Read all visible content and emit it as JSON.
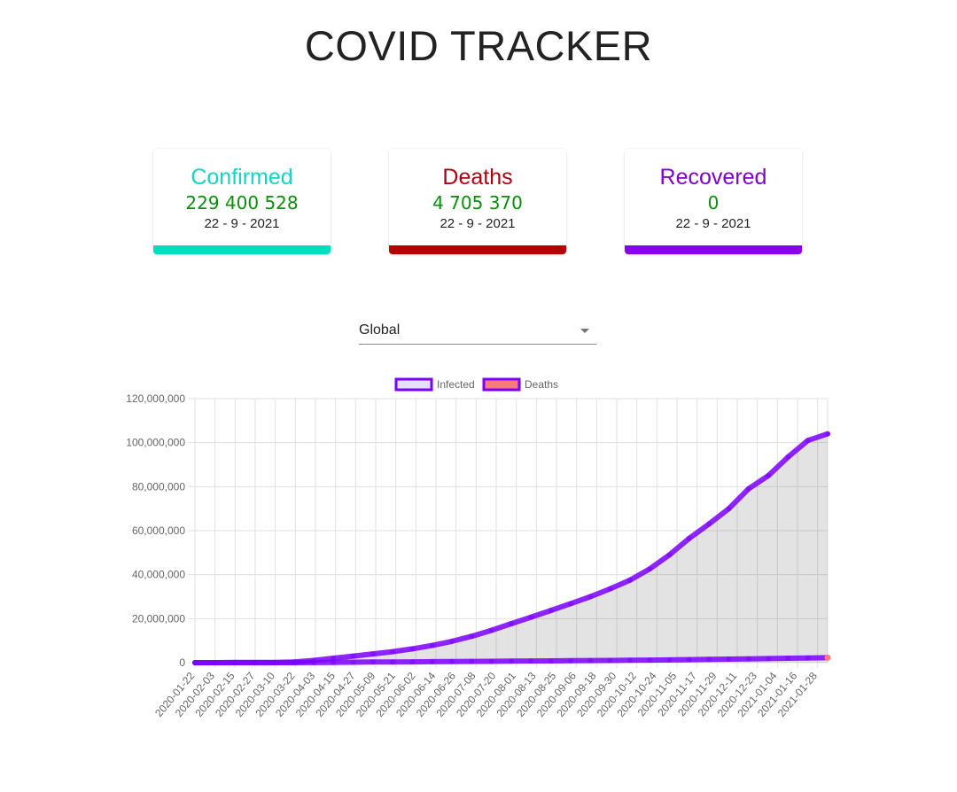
{
  "header": {
    "title": "COVID TRACKER"
  },
  "cards": [
    {
      "title": "Confirmed",
      "value": "229 400 528",
      "date": "22 - 9 - 2021",
      "color": "#12d6c4",
      "bar_color": "#00dec0"
    },
    {
      "title": "Deaths",
      "value": "4 705 370",
      "date": "22 - 9 - 2021",
      "color": "#b00010",
      "bar_color": "#b30000"
    },
    {
      "title": "Recovered",
      "value": "0",
      "date": "22 - 9 - 2021",
      "color": "#8000d0",
      "bar_color": "#8a00e8"
    }
  ],
  "country_select": {
    "value": "Global"
  },
  "chart_data": {
    "type": "line",
    "legend": {
      "position": "top"
    },
    "grid": true,
    "ylim": [
      0,
      120000000
    ],
    "yticks": [
      "0",
      "20,000,000",
      "40,000,000",
      "60,000,000",
      "80,000,000",
      "100,000,000",
      "120,000,000"
    ],
    "xticks": [
      "2020-01-22",
      "2020-02-03",
      "2020-02-15",
      "2020-02-27",
      "2020-03-10",
      "2020-03-22",
      "2020-04-03",
      "2020-04-15",
      "2020-04-27",
      "2020-05-09",
      "2020-05-21",
      "2020-06-02",
      "2020-06-14",
      "2020-06-26",
      "2020-07-08",
      "2020-07-20",
      "2020-08-01",
      "2020-08-13",
      "2020-08-25",
      "2020-09-06",
      "2020-09-18",
      "2020-09-30",
      "2020-10-12",
      "2020-10-24",
      "2020-11-05",
      "2020-11-17",
      "2020-11-29",
      "2020-12-11",
      "2020-12-23",
      "2021-01-04",
      "2021-01-16",
      "2021-01-28"
    ],
    "series": [
      {
        "name": "Infected",
        "color": "#7b00ff",
        "fill": "rgba(0,0,0,0.11)",
        "legend_fill": "#e6e0ff",
        "values": [
          600,
          10000,
          80000,
          83000,
          118000,
          330000,
          1000000,
          2000000,
          3000000,
          4000000,
          5000000,
          6300000,
          7800000,
          9700000,
          12000000,
          14700000,
          17700000,
          20700000,
          23700000,
          26800000,
          30000000,
          33600000,
          37500000,
          42600000,
          49000000,
          56500000,
          63000000,
          70000000,
          79000000,
          85000000,
          93500000,
          101000000,
          104000000
        ]
      },
      {
        "name": "Deaths",
        "color": "#7b00ff",
        "legend_fill": "#f87a7a",
        "values": [
          17,
          400,
          2800,
          2900,
          4300,
          15000,
          53000,
          130000,
          210000,
          280000,
          330000,
          380000,
          430000,
          500000,
          550000,
          610000,
          690000,
          750000,
          810000,
          870000,
          950000,
          1010000,
          1080000,
          1150000,
          1250000,
          1350000,
          1470000,
          1600000,
          1740000,
          1860000,
          2010000,
          2150000,
          2250000
        ]
      }
    ]
  }
}
